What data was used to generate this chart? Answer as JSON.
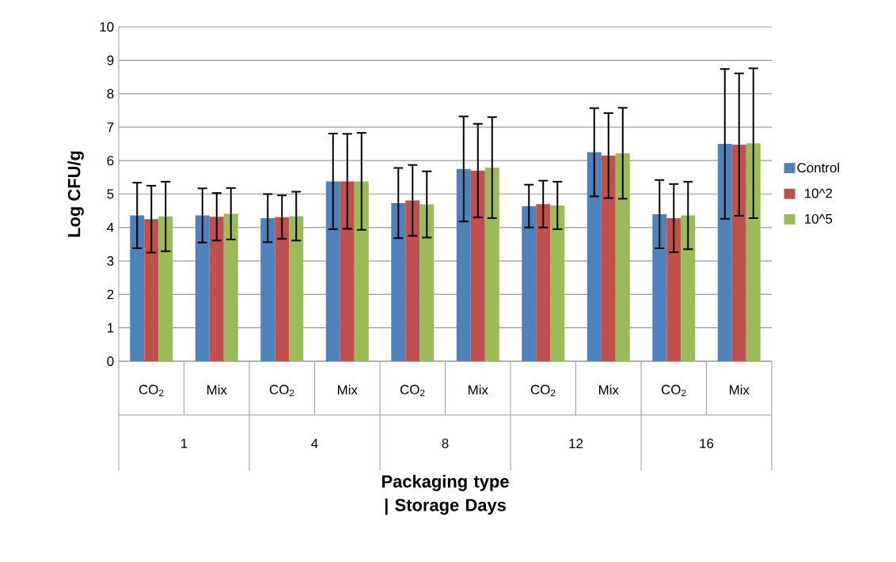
{
  "chart_data": {
    "type": "bar",
    "categories": [
      "CO$_{2}$",
      "Mix",
      "CO$_{2}$",
      "Mix",
      "CO$_{2}$",
      "Mix",
      "CO$_{2}$",
      "Mix",
      "CO$_{2}$",
      "Mix"
    ],
    "annotations": [
      "1",
      "4",
      "8",
      "12",
      "16"
    ],
    "xlabel": "Packaging type | Storage Days",
    "ylabel": "Log CFU/g",
    "series": [
      {
        "name": "Control",
        "color": "#4f81bd",
        "values": [
          4.36,
          4.36,
          4.28,
          5.38,
          4.73,
          5.75,
          4.64,
          6.25,
          4.4,
          6.5
        ],
        "errors": [
          0.98,
          0.81,
          0.72,
          1.43,
          1.05,
          1.57,
          0.64,
          1.32,
          1.02,
          2.24
        ]
      },
      {
        "name": "10^2",
        "color": "#c0504d",
        "values": [
          4.25,
          4.32,
          4.31,
          5.38,
          4.81,
          5.7,
          4.7,
          6.15,
          4.28,
          6.48
        ],
        "errors": [
          1.0,
          0.71,
          0.65,
          1.42,
          1.06,
          1.4,
          0.7,
          1.27,
          1.02,
          2.13
        ]
      },
      {
        "name": "10^5",
        "color": "#9bbb59",
        "values": [
          4.33,
          4.41,
          4.34,
          5.38,
          4.69,
          5.79,
          4.66,
          6.22,
          4.36,
          6.52
        ],
        "errors": [
          1.04,
          0.77,
          0.73,
          1.45,
          0.99,
          1.51,
          0.71,
          1.36,
          1.01,
          2.24
        ]
      }
    ],
    "ylim": [
      0,
      10
    ],
    "yticks": [
      0,
      1,
      2,
      3,
      4,
      5,
      6,
      7,
      8,
      9,
      10
    ],
    "grid": "y",
    "legend": "right"
  }
}
